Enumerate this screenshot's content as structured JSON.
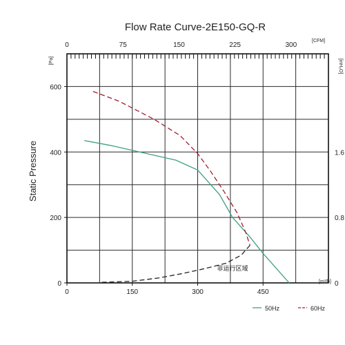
{
  "chart_data": {
    "type": "line",
    "title": "Flow Rate Curve-2E150-GQ-R",
    "ylabel": "Static Pressure",
    "x_unit_bottom": "[m³/h]",
    "x_unit_top": "[CFM]",
    "y_unit_left": "[Pa]",
    "y_unit_right": "[inH₂O]",
    "xlim": [
      0,
      600
    ],
    "ylim": [
      0,
      700
    ],
    "x_ticks_bottom": [
      "0",
      "150",
      "300",
      "450"
    ],
    "x_ticks_top": [
      "0",
      "75",
      "150",
      "225",
      "300"
    ],
    "y_ticks_left": [
      "0",
      "200",
      "400",
      "600"
    ],
    "y_ticks_right": [
      "0",
      "0.8",
      "1.6"
    ],
    "series": [
      {
        "name": "50Hz",
        "style": "solid",
        "color": "#3e9e86",
        "x": [
          40,
          100,
          150,
          200,
          250,
          300,
          350,
          380,
          420,
          450,
          490,
          510
        ],
        "y": [
          435,
          420,
          405,
          390,
          375,
          345,
          270,
          200,
          140,
          90,
          30,
          0
        ]
      },
      {
        "name": "60Hz",
        "style": "dashed",
        "color": "#a01c2c",
        "x": [
          60,
          120,
          200,
          260,
          300,
          330,
          360,
          390,
          410,
          420
        ],
        "y": [
          585,
          555,
          500,
          450,
          395,
          340,
          280,
          215,
          155,
          115
        ]
      },
      {
        "name": "",
        "style": "dashed",
        "color": "#222222",
        "x": [
          80,
          150,
          210,
          270,
          320,
          365,
          400,
          420
        ],
        "y": [
          2,
          5,
          15,
          30,
          45,
          60,
          85,
          115
        ]
      }
    ],
    "annotations": [
      {
        "text": "非运行区域",
        "x": 380,
        "y": 38
      }
    ],
    "legend_position": "bottom-right",
    "grid": true
  }
}
